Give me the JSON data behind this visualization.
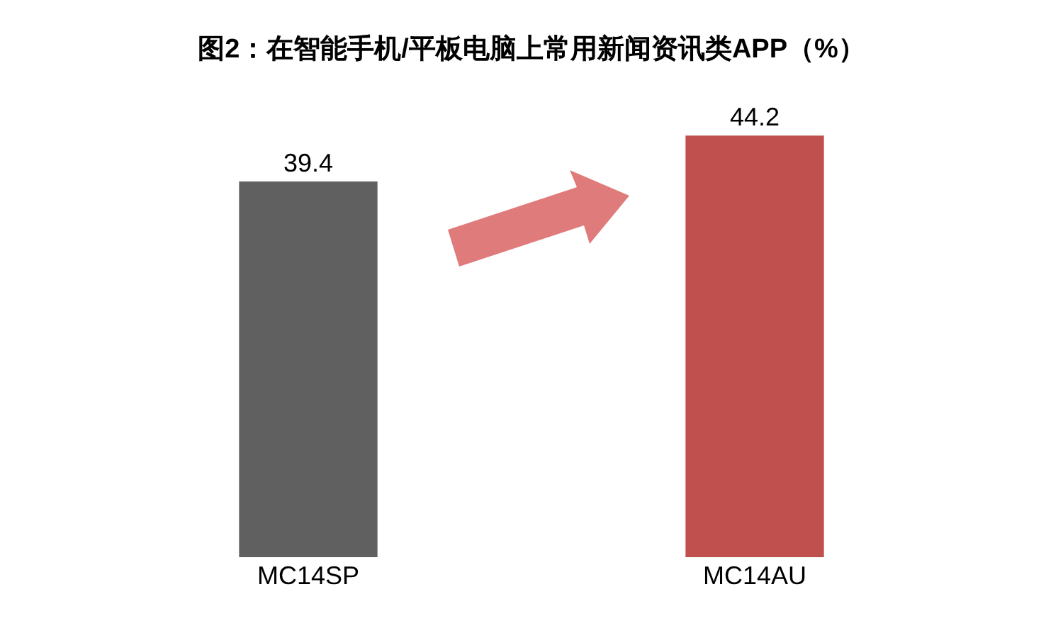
{
  "chart_data": {
    "type": "bar",
    "title": "图2：在智能手机/平板电脑上常用新闻资讯类APP（%）",
    "categories": [
      "MC14SP",
      "MC14AU"
    ],
    "values": [
      39.4,
      44.2
    ],
    "colors": [
      "#606060",
      "#c0504d"
    ],
    "data_labels": true,
    "grid": false
  }
}
